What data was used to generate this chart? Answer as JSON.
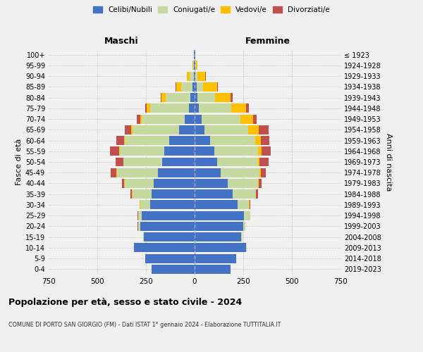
{
  "age_groups": [
    "0-4",
    "5-9",
    "10-14",
    "15-19",
    "20-24",
    "25-29",
    "30-34",
    "35-39",
    "40-44",
    "45-49",
    "50-54",
    "55-59",
    "60-64",
    "65-69",
    "70-74",
    "75-79",
    "80-84",
    "85-89",
    "90-94",
    "95-99",
    "100+"
  ],
  "birth_years": [
    "2019-2023",
    "2014-2018",
    "2009-2013",
    "2004-2008",
    "1999-2003",
    "1994-1998",
    "1989-1993",
    "1984-1988",
    "1979-1983",
    "1974-1978",
    "1969-1973",
    "1964-1968",
    "1959-1963",
    "1954-1958",
    "1949-1953",
    "1944-1948",
    "1939-1943",
    "1934-1938",
    "1929-1933",
    "1924-1928",
    "≤ 1923"
  ],
  "male_celibi": [
    220,
    255,
    310,
    260,
    280,
    270,
    230,
    220,
    210,
    190,
    165,
    155,
    130,
    80,
    50,
    30,
    20,
    10,
    5,
    4,
    2
  ],
  "male_coniugati": [
    0,
    0,
    2,
    5,
    10,
    20,
    50,
    100,
    150,
    210,
    200,
    230,
    230,
    240,
    220,
    200,
    130,
    60,
    20,
    5,
    1
  ],
  "male_vedovi": [
    0,
    0,
    0,
    0,
    1,
    1,
    1,
    1,
    1,
    1,
    2,
    3,
    3,
    5,
    10,
    15,
    20,
    25,
    15,
    3,
    0
  ],
  "male_divorziati": [
    0,
    0,
    0,
    0,
    1,
    1,
    3,
    8,
    12,
    30,
    40,
    45,
    40,
    35,
    18,
    10,
    5,
    3,
    1,
    0,
    0
  ],
  "female_celibi": [
    185,
    215,
    265,
    240,
    250,
    255,
    220,
    195,
    170,
    135,
    115,
    100,
    80,
    50,
    35,
    20,
    15,
    10,
    5,
    4,
    2
  ],
  "female_coniugati": [
    0,
    0,
    2,
    5,
    10,
    30,
    60,
    120,
    155,
    200,
    210,
    225,
    230,
    225,
    200,
    170,
    90,
    35,
    10,
    2,
    0
  ],
  "female_vedovi": [
    0,
    0,
    0,
    0,
    0,
    1,
    1,
    2,
    3,
    5,
    10,
    20,
    30,
    55,
    65,
    75,
    80,
    70,
    40,
    8,
    1
  ],
  "female_divorziati": [
    0,
    0,
    0,
    0,
    1,
    2,
    5,
    8,
    15,
    25,
    45,
    45,
    45,
    50,
    20,
    15,
    10,
    5,
    2,
    0,
    0
  ],
  "colors": {
    "celibi": "#4472c4",
    "coniugati": "#c5d9a0",
    "vedovi": "#ffc000",
    "divorziati": "#c0504d"
  },
  "xlim": 750,
  "title": "Popolazione per età, sesso e stato civile - 2024",
  "subtitle": "COMUNE DI PORTO SAN GIORGIO (FM) - Dati ISTAT 1° gennaio 2024 - Elaborazione TUTTITALIA.IT",
  "ylabel_left": "Fasce di età",
  "ylabel_right": "Anni di nascita",
  "xlabel_left": "Maschi",
  "xlabel_right": "Femmine",
  "background_color": "#f0f0f0",
  "legend_labels": [
    "Celibi/Nubili",
    "Coniugati/e",
    "Vedovi/e",
    "Divorziati/e"
  ]
}
